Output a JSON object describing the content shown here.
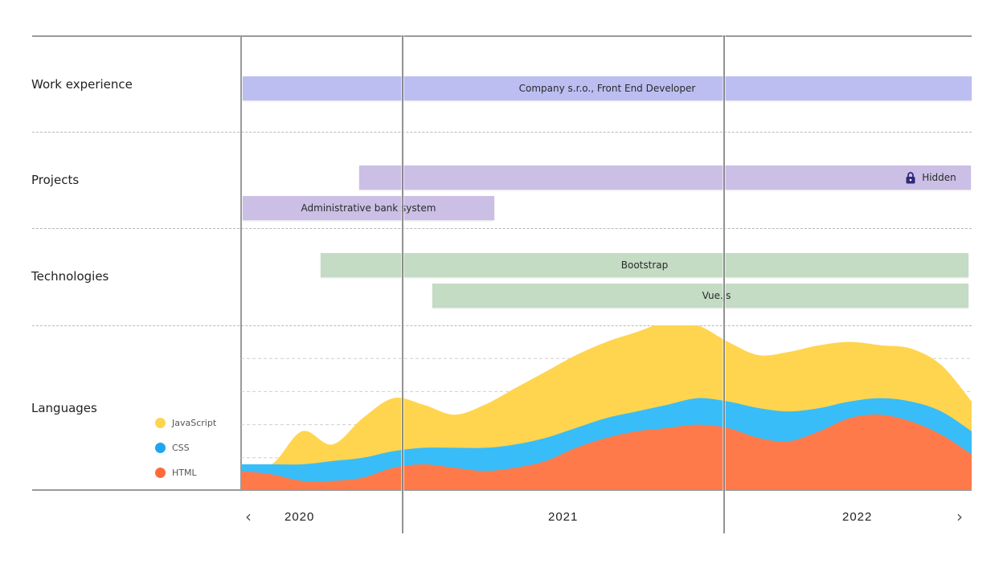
{
  "rows": [
    {
      "label": "Work experience"
    },
    {
      "label": "Projects"
    },
    {
      "label": "Technologies"
    },
    {
      "label": "Languages"
    }
  ],
  "work": {
    "company_bar": "Company s.r.o., Front End Developer"
  },
  "projects": {
    "hidden_bar": "Hidden",
    "bank_bar": "Administrative bank system"
  },
  "technologies": {
    "bootstrap_bar": "Bootstrap",
    "vue_bar": "Vue.js"
  },
  "timeline": {
    "years": [
      "2020",
      "2021",
      "2022"
    ],
    "prev_icon": "chevron-left-icon",
    "next_icon": "chevron-right-icon",
    "prev_glyph": "‹",
    "next_glyph": "›"
  },
  "chart_data": {
    "type": "area",
    "stacked": true,
    "title": "Languages",
    "x": [
      0,
      0.5,
      1,
      1.5,
      2,
      2.5,
      3,
      3.5,
      4,
      4.5,
      5,
      5.5,
      6,
      6.5,
      7,
      7.5,
      8,
      8.5,
      9,
      9.5,
      10,
      10.5,
      11,
      11.5,
      12
    ],
    "series": [
      {
        "name": "HTML",
        "color": "#ff7a4a",
        "values": [
          0.6,
          0.5,
          0.3,
          0.3,
          0.4,
          0.7,
          0.8,
          0.7,
          0.6,
          0.7,
          0.9,
          1.3,
          1.6,
          1.8,
          1.9,
          2.0,
          1.9,
          1.6,
          1.5,
          1.8,
          2.2,
          2.3,
          2.1,
          1.7,
          1.1
        ]
      },
      {
        "name": "CSS",
        "color": "#38bdf8",
        "values": [
          0.2,
          0.3,
          0.5,
          0.6,
          0.6,
          0.5,
          0.5,
          0.6,
          0.7,
          0.7,
          0.7,
          0.6,
          0.6,
          0.6,
          0.7,
          0.8,
          0.8,
          0.9,
          0.9,
          0.7,
          0.5,
          0.5,
          0.6,
          0.7,
          0.7
        ]
      },
      {
        "name": "JavaScript",
        "color": "#ffd54f",
        "values": [
          0.0,
          0.0,
          1.0,
          0.5,
          1.2,
          1.6,
          1.3,
          1.0,
          1.3,
          1.7,
          2.0,
          2.2,
          2.3,
          2.4,
          2.5,
          2.2,
          1.8,
          1.6,
          1.8,
          1.9,
          1.8,
          1.6,
          1.6,
          1.4,
          0.9
        ]
      }
    ],
    "legend": [
      "JavaScript",
      "CSS",
      "HTML"
    ],
    "legend_colors": [
      "#ffd54f",
      "#1ea6f0",
      "#ff6a3a"
    ],
    "ylim": [
      0,
      5
    ]
  }
}
